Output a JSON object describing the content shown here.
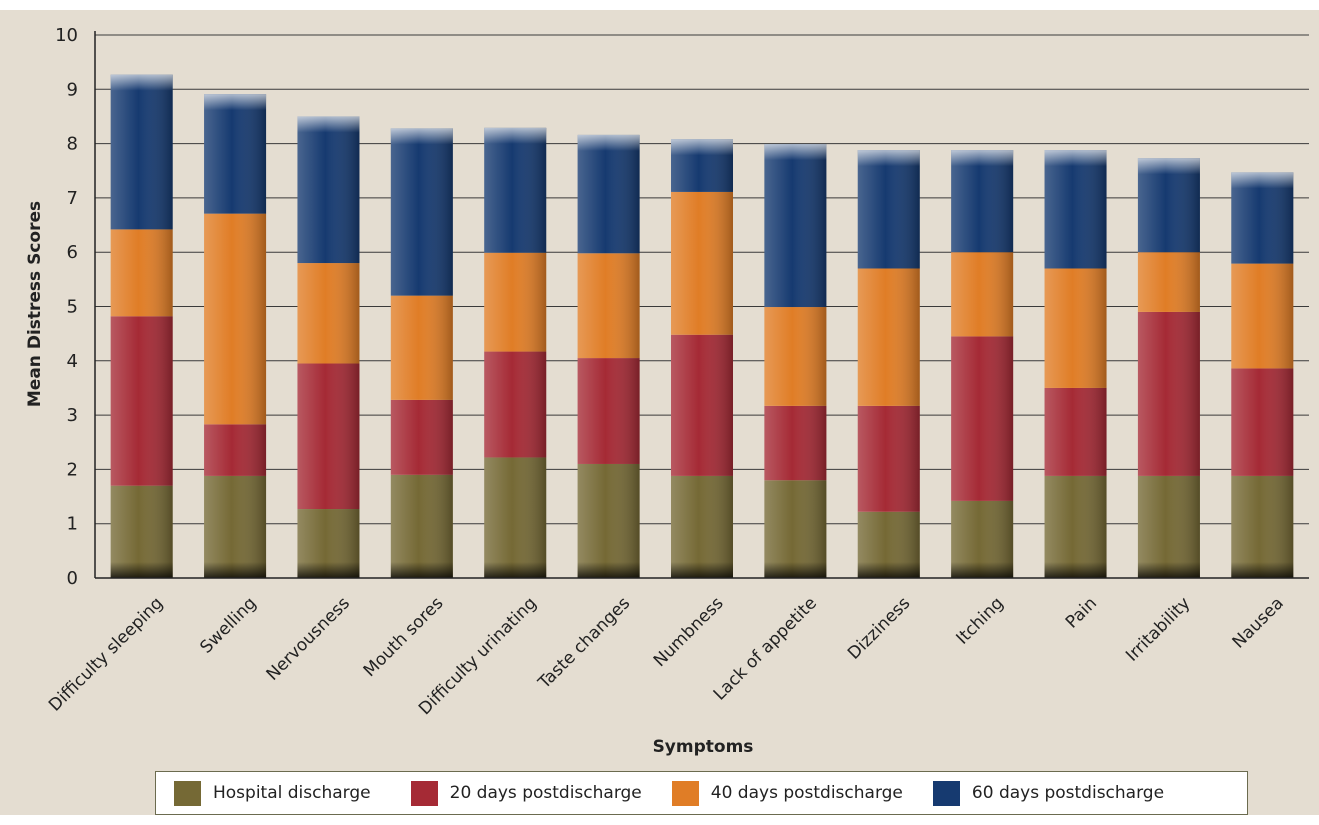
{
  "chart_data": {
    "type": "bar",
    "stacked": true,
    "xlabel": "Symptoms",
    "ylabel": "Mean Distress Scores",
    "ylim": [
      0,
      10
    ],
    "yticks": [
      0,
      1,
      2,
      3,
      4,
      5,
      6,
      7,
      8,
      9,
      10
    ],
    "grid": "horizontal",
    "legend_position": "bottom",
    "categories": [
      "Difficulty sleeping",
      "Swelling",
      "Nervousness",
      "Mouth sores",
      "Difficulty urinating",
      "Taste changes",
      "Numbness",
      "Lack of appetite",
      "Dizziness",
      "Itching",
      "Pain",
      "Irritability",
      "Nausea"
    ],
    "series": [
      {
        "name": "Hospital discharge",
        "color": "#756935",
        "values": [
          1.7,
          1.88,
          1.27,
          1.9,
          2.22,
          2.1,
          1.88,
          1.8,
          1.22,
          1.42,
          1.88,
          1.88,
          1.88
        ]
      },
      {
        "name": "20 days postdischarge",
        "color": "#a52a35",
        "values": [
          3.12,
          0.95,
          2.68,
          1.38,
          1.95,
          1.95,
          2.6,
          1.37,
          1.95,
          3.03,
          1.62,
          3.02,
          1.98
        ]
      },
      {
        "name": "40 days postdischarge",
        "color": "#e07d26",
        "values": [
          1.6,
          3.88,
          1.85,
          1.92,
          1.82,
          1.93,
          2.63,
          1.82,
          2.53,
          1.55,
          2.2,
          1.1,
          1.93
        ]
      },
      {
        "name": "60 days postdischarge",
        "color": "#163a70",
        "values": [
          2.85,
          2.2,
          2.7,
          3.08,
          2.3,
          2.18,
          0.97,
          3.0,
          2.18,
          1.88,
          2.18,
          1.73,
          1.68
        ]
      }
    ]
  }
}
